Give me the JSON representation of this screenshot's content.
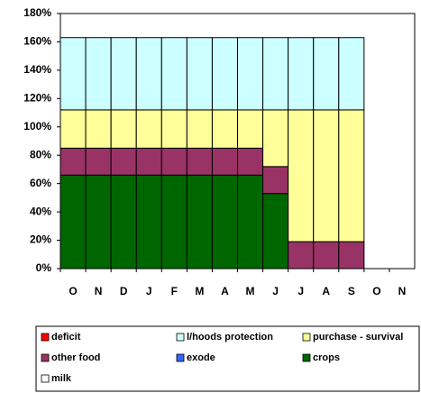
{
  "chart_data": {
    "type": "stacked_bar",
    "categories": [
      "O",
      "N",
      "D",
      "J",
      "F",
      "M",
      "A",
      "M",
      "J",
      "J",
      "A",
      "S",
      "O",
      "N"
    ],
    "series": [
      {
        "name": "deficit",
        "color": "#ff0000",
        "values": [
          0,
          0,
          0,
          0,
          0,
          0,
          0,
          0,
          0,
          0,
          0,
          0,
          0,
          0
        ]
      },
      {
        "name": "l/hoods protection",
        "color": "#ccffff",
        "values": [
          51,
          51,
          51,
          51,
          51,
          51,
          51,
          51,
          51,
          51,
          51,
          51,
          0,
          0
        ]
      },
      {
        "name": "purchase - survival",
        "color": "#ffff99",
        "values": [
          27,
          27,
          27,
          27,
          27,
          27,
          27,
          27,
          40,
          93,
          93,
          93,
          0,
          0
        ]
      },
      {
        "name": "other food",
        "color": "#993366",
        "values": [
          19,
          19,
          19,
          19,
          19,
          19,
          19,
          19,
          19,
          19,
          19,
          19,
          0,
          0
        ]
      },
      {
        "name": "exode",
        "color": "#3366ff",
        "values": [
          0,
          0,
          0,
          0,
          0,
          0,
          0,
          0,
          0,
          0,
          0,
          0,
          0,
          0
        ]
      },
      {
        "name": "crops",
        "color": "#006600",
        "values": [
          66,
          66,
          66,
          66,
          66,
          66,
          66,
          66,
          53,
          0,
          0,
          0,
          0,
          0
        ]
      },
      {
        "name": "milk",
        "color": "#ffffff",
        "values": [
          0,
          0,
          0,
          0,
          0,
          0,
          0,
          0,
          0,
          0,
          0,
          0,
          0,
          0
        ]
      }
    ],
    "ylim": [
      0,
      180
    ],
    "yticks": [
      {
        "value": 0,
        "label": "0%"
      },
      {
        "value": 20,
        "label": "20%"
      },
      {
        "value": 40,
        "label": "40%"
      },
      {
        "value": 60,
        "label": "60%"
      },
      {
        "value": 80,
        "label": "80%"
      },
      {
        "value": 100,
        "label": "100%"
      },
      {
        "value": 120,
        "label": "120%"
      },
      {
        "value": 140,
        "label": "140%"
      },
      {
        "value": 160,
        "label": "160%"
      },
      {
        "value": 180,
        "label": "180%"
      }
    ],
    "legend": "bottom"
  }
}
